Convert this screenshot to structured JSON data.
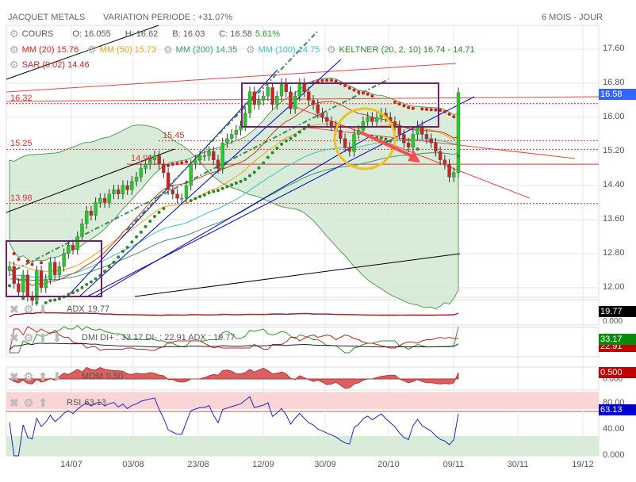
{
  "header": {
    "title": "JACQUET METALS",
    "variation": "VARIATION PERIODE : +31.07%",
    "period": "6 MOIS - JOUR"
  },
  "legend": {
    "cours": {
      "label": "COURS",
      "o": "O: 16.055",
      "h": "H: 16.62",
      "b": "B: 16.03",
      "c": "C: 16.58",
      "pct": "5.61%"
    },
    "mm20": "MM (20)  15.76",
    "mm50": "MM (50)  15.73",
    "mm200": "MM (200)  14.35",
    "mm100": "MM (100)  14.75",
    "keltner": "KELTNER (20, 2, 10)  16.74 - 14.71",
    "sar": "SAR (0.02)  14.46"
  },
  "indicators": {
    "adx": {
      "label": "ADX",
      "value": "19.77",
      "box": "19.77",
      "zero": "0.000"
    },
    "dmi": {
      "label": "DMI  DI+ : 33.17  DI- : 22.91  ADX : 19.77",
      "diplus": "33.17",
      "diminus": "22.91"
    },
    "mom": {
      "label": "MOM",
      "value": "0.50",
      "box": "0.500",
      "zero": "0.000"
    },
    "rsi": {
      "label": "RSI",
      "value": "63.13",
      "box": "63.13",
      "t80": "80.00",
      "t40": "40.00",
      "t0": "0.000"
    }
  },
  "colors": {
    "up": "#22cc22",
    "down": "#cc2222",
    "last_price_box": "#3366ff"
  },
  "last_price": "16.58",
  "chart_data": {
    "type": "candlestick",
    "title": "JACQUET METALS",
    "ylim": [
      11.8,
      18.0
    ],
    "yticks": [
      "17.60",
      "16.80",
      "16.00",
      "15.20",
      "14.40",
      "13.60",
      "12.80",
      "12.00"
    ],
    "xticks": [
      "14/07",
      "03/08",
      "23/08",
      "12/09",
      "30/09",
      "20/10",
      "09/11",
      "30/11",
      "19/12"
    ],
    "levels": [
      {
        "label": "16.32",
        "value": 16.32
      },
      {
        "label": "15.45",
        "value": 15.45
      },
      {
        "label": "15.25",
        "value": 15.25
      },
      {
        "label": "14.90",
        "value": 14.9
      },
      {
        "label": "13.98",
        "value": 13.98
      }
    ],
    "closes": [
      12.5,
      12.1,
      11.9,
      12.3,
      11.8,
      11.7,
      12.4,
      12.0,
      12.2,
      12.6,
      12.3,
      12.5,
      12.8,
      13.0,
      12.9,
      13.2,
      13.5,
      13.8,
      13.7,
      14.0,
      14.1,
      14.0,
      14.2,
      14.3,
      14.2,
      14.4,
      14.3,
      14.5,
      14.6,
      14.8,
      14.9,
      15.0,
      15.1,
      14.9,
      14.7,
      14.3,
      14.2,
      14.1,
      14.1,
      14.4,
      14.9,
      15.0,
      15.1,
      15.1,
      15.2,
      15.0,
      14.8,
      15.4,
      15.5,
      15.6,
      15.7,
      15.8,
      16.1,
      16.6,
      16.3,
      16.4,
      16.5,
      16.7,
      16.3,
      16.5,
      16.8,
      16.6,
      16.2,
      16.5,
      16.8,
      16.6,
      16.4,
      16.3,
      16.1,
      16.0,
      15.9,
      15.8,
      15.7,
      15.5,
      15.3,
      15.2,
      15.6,
      15.7,
      15.9,
      16.0,
      15.9,
      16.0,
      16.1,
      16.0,
      15.9,
      15.8,
      15.6,
      15.4,
      15.3,
      15.6,
      15.8,
      15.6,
      15.5,
      15.4,
      15.2,
      15.0,
      14.9,
      14.6,
      14.7,
      16.58
    ]
  }
}
